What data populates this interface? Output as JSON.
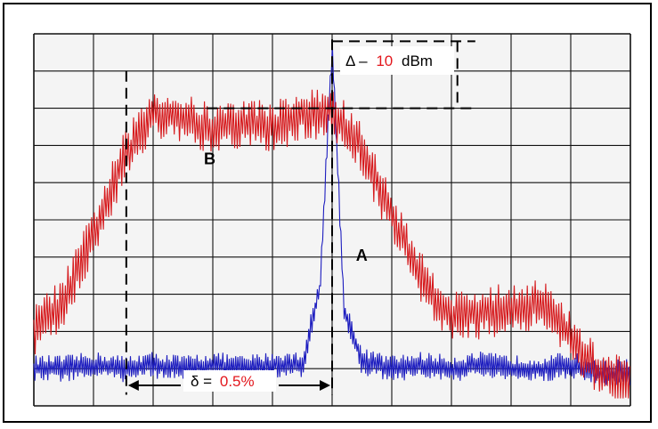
{
  "chart_data": {
    "type": "line",
    "title": "",
    "xlabel": "",
    "ylabel": "",
    "grid": true,
    "grid_divisions": {
      "x": 10,
      "y": 10
    },
    "colors": {
      "trace_B": "#d6191c",
      "trace_A": "#1d1dbf",
      "background": "#f4f4f4",
      "grid": "#111111",
      "highlight": "#e3171d"
    },
    "series": [
      {
        "x": [
          0,
          0.5,
          1,
          1.5,
          2,
          2.5,
          3,
          3.5,
          4,
          4.5,
          5,
          5.5,
          6,
          6.5,
          7,
          7.5,
          8,
          8.5,
          9,
          9.5,
          10
        ],
        "values": [
          2.0,
          2.8,
          4.6,
          6.6,
          7.9,
          7.7,
          7.4,
          7.6,
          7.5,
          7.8,
          7.9,
          6.9,
          5.1,
          3.4,
          2.4,
          2.5,
          2.6,
          2.8,
          1.8,
          0.8,
          0.6
        ]
      },
      {
        "x": [
          0,
          0.5,
          1,
          1.5,
          2,
          2.5,
          3,
          3.5,
          4,
          4.5,
          4.8,
          5,
          5.2,
          5.5,
          6,
          6.5,
          7,
          7.5,
          8,
          8.5,
          9,
          9.5,
          10
        ],
        "values": [
          1.0,
          1.0,
          1.1,
          1.0,
          1.1,
          1.0,
          1.1,
          1.0,
          1.1,
          1.1,
          3.2,
          9.7,
          2.6,
          1.2,
          1.0,
          1.1,
          1.0,
          1.1,
          1.0,
          1.0,
          1.1,
          0.9,
          0.9
        ]
      }
    ],
    "annotations": {
      "delta_prefix": "Δ –",
      "delta_value": "10",
      "delta_unit": "dBm",
      "delta_y_top": 9.8,
      "delta_y_bottom": 8.0,
      "width_prefix": "δ =",
      "width_value": "0.5%",
      "width_x_start": 1.55,
      "width_x_end": 5.0,
      "label_A": "A",
      "label_B": "B",
      "label_A_point": {
        "x": 5.4,
        "y": 3.9
      },
      "label_B_point": {
        "x": 2.85,
        "y": 6.5
      }
    }
  }
}
